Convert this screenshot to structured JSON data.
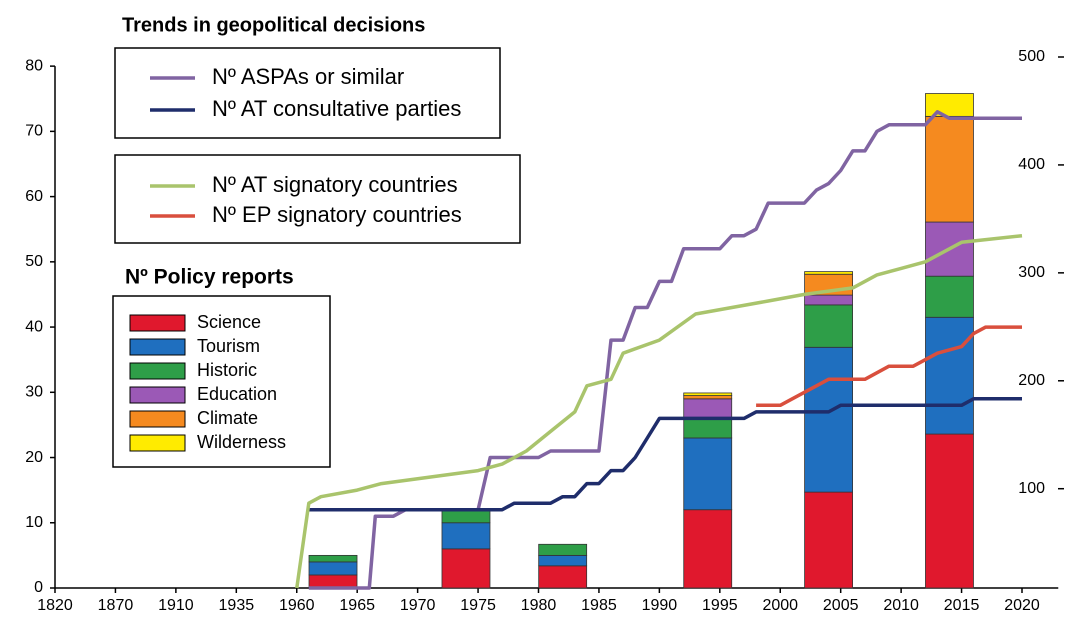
{
  "chart_data": {
    "type": "combo",
    "title": "Trends in geopolitical decisions",
    "legend_title": "Nº Policy reports",
    "xlim": [
      1820,
      2023
    ],
    "xticks": [
      1820,
      1870,
      1910,
      1935,
      1960,
      1965,
      1970,
      1975,
      1980,
      1985,
      1990,
      1995,
      2000,
      2005,
      2010,
      2015,
      2020
    ],
    "ylim": [
      0,
      81.4
    ],
    "yticks": [
      0,
      10,
      20,
      30,
      40,
      50,
      60,
      70,
      80
    ],
    "y2lim": [
      8,
      500
    ],
    "y2ticks": [
      100,
      200,
      300,
      400,
      500
    ],
    "bar_x": [
      1963,
      1974,
      1982,
      1994,
      2004,
      2014
    ],
    "bar_series": [
      {
        "name": "Science",
        "color": "#e0182d",
        "values": [
          2,
          6,
          3.4,
          12,
          14.7,
          23.6
        ]
      },
      {
        "name": "Tourism",
        "color": "#1f6fbf",
        "values": [
          2,
          4,
          1.6,
          11,
          22.2,
          17.9
        ]
      },
      {
        "name": "Historic",
        "color": "#2e9e48",
        "values": [
          1,
          2,
          1.7,
          3,
          6.5,
          6.3
        ]
      },
      {
        "name": "Education",
        "color": "#9b59b6",
        "values": [
          0,
          0,
          0,
          3,
          1.5,
          8.3
        ]
      },
      {
        "name": "Climate",
        "color": "#f58a1f",
        "values": [
          0,
          0,
          0,
          0.5,
          3.2,
          16.2
        ]
      },
      {
        "name": "Wilderness",
        "color": "#ffeb00",
        "values": [
          0,
          0,
          0,
          0.4,
          0.4,
          3.5
        ]
      }
    ],
    "line_series": [
      {
        "name": "Nº ASPAs or similar",
        "color": "#8064a2",
        "x": [
          1961,
          1966,
          1966.5,
          1968,
          1969,
          1975,
          1976,
          1980,
          1981,
          1985,
          1986,
          1987,
          1988,
          1989,
          1990,
          1991,
          1992,
          1995,
          1996,
          1997,
          1998,
          1999,
          2002,
          2003,
          2004,
          2005,
          2006,
          2007,
          2008,
          2009,
          2012,
          2013,
          2014,
          2020
        ],
        "values": [
          0,
          0,
          11,
          11,
          12,
          12,
          20,
          20,
          21,
          21,
          38,
          38,
          43,
          43,
          47,
          47,
          52,
          52,
          54,
          54,
          55,
          59,
          59,
          61,
          62,
          64,
          67,
          67,
          70,
          71,
          71,
          73,
          72,
          72
        ]
      },
      {
        "name": "Nº AT consultative parties",
        "color": "#1f2d6b",
        "x": [
          1961,
          1977,
          1978,
          1981,
          1982,
          1983,
          1984,
          1985,
          1986,
          1987,
          1988,
          1989,
          1990,
          1997,
          1998,
          2004,
          2005,
          2015,
          2016,
          2020
        ],
        "values": [
          12,
          12,
          13,
          13,
          14,
          14,
          16,
          16,
          18,
          18,
          20,
          23,
          26,
          26,
          27,
          27,
          28,
          28,
          29,
          29
        ]
      },
      {
        "name": "Nº AT signatory countries",
        "color": "#a9c46c",
        "x": [
          1960,
          1961,
          1962,
          1965,
          1967,
          1971,
          1975,
          1977,
          1979,
          1981,
          1983,
          1984,
          1986,
          1987,
          1990,
          1993,
          1996,
          1999,
          2002,
          2006,
          2008,
          2010,
          2012,
          2015,
          2020
        ],
        "values": [
          0,
          13,
          14,
          15,
          16,
          17,
          18,
          19,
          21,
          24,
          27,
          31,
          32,
          36,
          38,
          42,
          43,
          44,
          45,
          46,
          48,
          49,
          50,
          53,
          54
        ]
      },
      {
        "name": "Nº EP signatory countries",
        "color": "#d94f3d",
        "x": [
          1998,
          2000,
          2001,
          2002,
          2003,
          2004,
          2007,
          2009,
          2011,
          2012,
          2013,
          2015,
          2016,
          2017,
          2020
        ],
        "values": [
          28,
          28,
          29,
          30,
          31,
          32,
          32,
          34,
          34,
          35,
          36,
          37,
          39,
          40,
          40
        ]
      }
    ]
  }
}
